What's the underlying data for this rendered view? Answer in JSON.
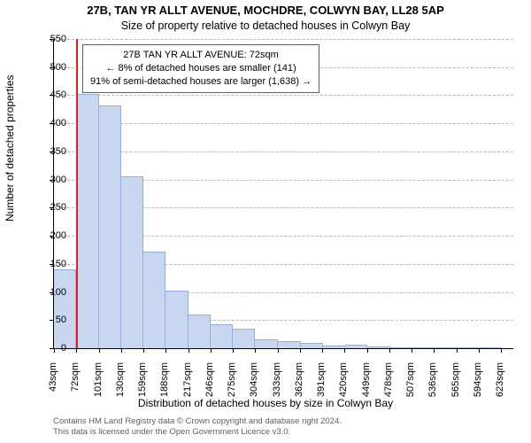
{
  "title_main": "27B, TAN YR ALLT AVENUE, MOCHDRE, COLWYN BAY, LL28 5AP",
  "title_sub": "Size of property relative to detached houses in Colwyn Bay",
  "y_axis_label": "Number of detached properties",
  "x_axis_label": "Distribution of detached houses by size in Colwyn Bay",
  "footer_line1": "Contains HM Land Registry data © Crown copyright and database right 2024.",
  "footer_line2": "This data is licensed under the Open Government Licence v3.0.",
  "info_box": {
    "line1": "27B TAN YR ALLT AVENUE: 72sqm",
    "line2": "← 8% of detached houses are smaller (141)",
    "line3": "91% of semi-detached houses are larger (1,638) →"
  },
  "chart": {
    "type": "histogram",
    "ylim": [
      0,
      550
    ],
    "ytick_step": 50,
    "xlim": [
      43,
      639
    ],
    "xtick_start": 43,
    "xtick_step": 29,
    "xtick_count": 21,
    "xtick_unit": "sqm",
    "background_color": "#ffffff",
    "grid_color": "#b8b8b8",
    "bar_fill": "#c8d6f0",
    "bar_stroke": "#98aed8",
    "marker_color": "#e02020",
    "marker_x": 72,
    "bars": [
      {
        "x0": 43,
        "x1": 72,
        "y": 140
      },
      {
        "x0": 72,
        "x1": 101,
        "y": 452
      },
      {
        "x0": 101,
        "x1": 130,
        "y": 432
      },
      {
        "x0": 130,
        "x1": 159,
        "y": 305
      },
      {
        "x0": 159,
        "x1": 188,
        "y": 172
      },
      {
        "x0": 188,
        "x1": 217,
        "y": 102
      },
      {
        "x0": 217,
        "x1": 246,
        "y": 60
      },
      {
        "x0": 246,
        "x1": 275,
        "y": 42
      },
      {
        "x0": 275,
        "x1": 304,
        "y": 35
      },
      {
        "x0": 304,
        "x1": 333,
        "y": 15
      },
      {
        "x0": 333,
        "x1": 363,
        "y": 12
      },
      {
        "x0": 363,
        "x1": 392,
        "y": 10
      },
      {
        "x0": 392,
        "x1": 421,
        "y": 5
      },
      {
        "x0": 421,
        "x1": 450,
        "y": 7
      },
      {
        "x0": 450,
        "x1": 479,
        "y": 3
      },
      {
        "x0": 479,
        "x1": 508,
        "y": 0
      },
      {
        "x0": 508,
        "x1": 537,
        "y": 2
      },
      {
        "x0": 537,
        "x1": 566,
        "y": 0
      },
      {
        "x0": 566,
        "x1": 595,
        "y": 0
      },
      {
        "x0": 595,
        "x1": 624,
        "y": 2
      }
    ],
    "title_fontsize": 13,
    "label_fontsize": 12,
    "tick_fontsize": 11
  }
}
